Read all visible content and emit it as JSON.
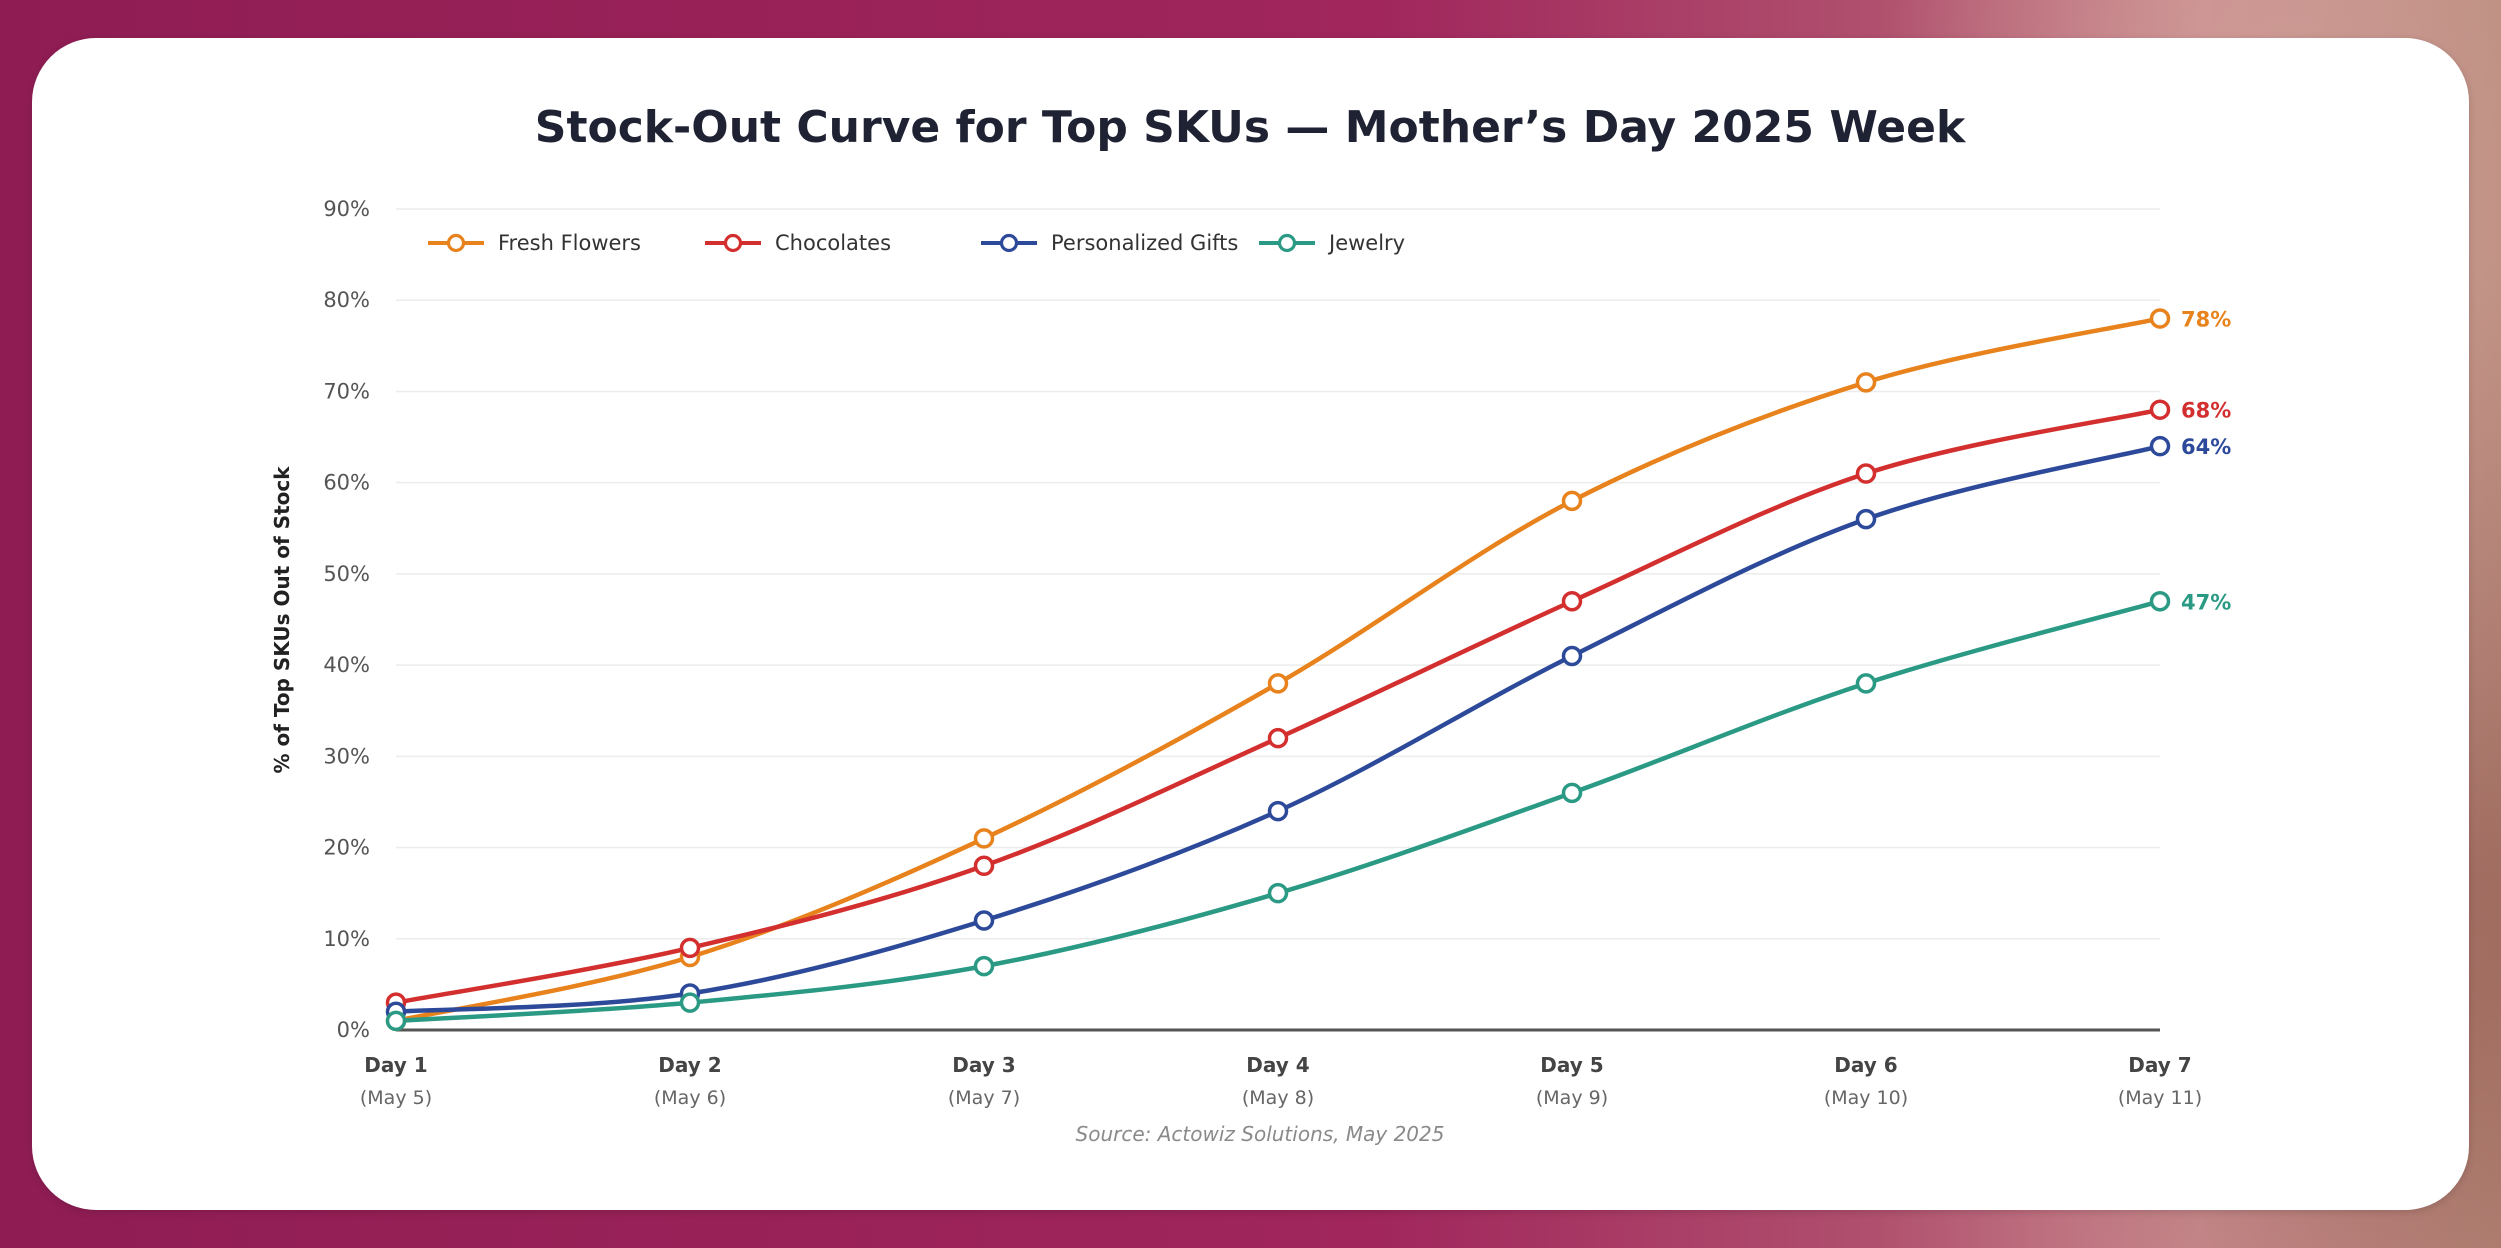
{
  "chart_data": {
    "type": "line",
    "title": "Stock-Out Curve for Top SKUs — Mother’s Day 2025 Week",
    "ylabel": "% of Top SKUs Out of Stock",
    "xlabel": "",
    "ylim": [
      0,
      90
    ],
    "y_ticks": [
      "0%",
      "10%",
      "20%",
      "30%",
      "40%",
      "50%",
      "60%",
      "70%",
      "80%",
      "90%"
    ],
    "categories": [
      "Day 1",
      "Day 2",
      "Day 3",
      "Day 4",
      "Day 5",
      "Day 6",
      "Day 7"
    ],
    "category_dates": [
      "(May 5)",
      "(May 6)",
      "(May 7)",
      "(May 8)",
      "(May 9)",
      "(May 10)",
      "(May 11)"
    ],
    "grid": true,
    "legend_position": "top-left",
    "series": [
      {
        "name": "Fresh Flowers",
        "color": "#e8821c",
        "values": [
          1,
          8,
          21,
          38,
          58,
          71,
          78
        ],
        "end_label": "78%"
      },
      {
        "name": "Chocolates",
        "color": "#d32f2f",
        "values": [
          3,
          9,
          18,
          32,
          47,
          61,
          68
        ],
        "end_label": "68%"
      },
      {
        "name": "Personalized Gifts",
        "color": "#2d4a9a",
        "values": [
          2,
          4,
          12,
          24,
          41,
          56,
          64
        ],
        "end_label": "64%"
      },
      {
        "name": "Jewelry",
        "color": "#2a9a84",
        "values": [
          1,
          3,
          7,
          15,
          26,
          38,
          47
        ],
        "end_label": "47%"
      }
    ],
    "source": "Source: Actowiz Solutions, May 2025"
  }
}
